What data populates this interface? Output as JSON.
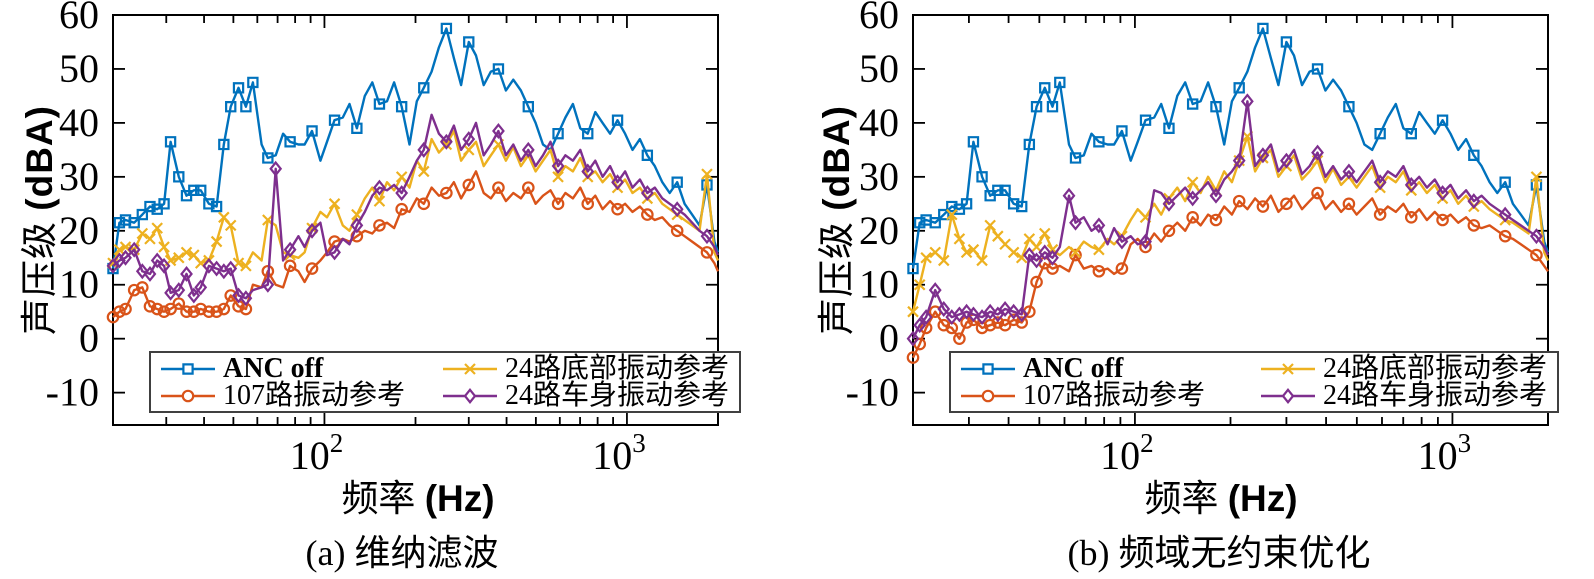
{
  "figure": {
    "background": "#ffffff",
    "axis_color": "#000000"
  },
  "chart_data": [
    {
      "id": "a",
      "type": "line",
      "title": "(a) 维纳滤波",
      "xlabel": "频率 (Hz)",
      "xlabel_cjk": "频率 ",
      "xlabel_latin": "(Hz)",
      "ylabel": "声压级 (dBA)",
      "ylabel_cjk": "声压级 ",
      "ylabel_latin": "(dBA)",
      "xscale": "log",
      "xlim": [
        20,
        2000
      ],
      "ylim": [
        -16,
        60
      ],
      "yticks": [
        60,
        50,
        40,
        30,
        20,
        10,
        0,
        -10
      ],
      "xticks_major": [
        100,
        1000
      ],
      "xtick_major_labels": [
        {
          "base": "10",
          "exp": "2"
        },
        {
          "base": "10",
          "exp": "3"
        }
      ],
      "xticks_minor": [
        30,
        40,
        50,
        60,
        70,
        80,
        90,
        200,
        300,
        400,
        500,
        600,
        700,
        800,
        900,
        2000
      ],
      "grid": false,
      "legend_position": "inside-bottom-left",
      "x": [
        20,
        21,
        22,
        23.5,
        25,
        26.5,
        28,
        29.5,
        31,
        33,
        35,
        37,
        39,
        41.5,
        44,
        46.5,
        49,
        52,
        55,
        58,
        62,
        65,
        69,
        73,
        77,
        82,
        86,
        91,
        97,
        102,
        108,
        115,
        121,
        128,
        136,
        144,
        152,
        161,
        170,
        180,
        191,
        202,
        213,
        226,
        239,
        253,
        268,
        283,
        300,
        317,
        336,
        355,
        376,
        398,
        421,
        446,
        472,
        499,
        528,
        559,
        592,
        626,
        663,
        701,
        742,
        786,
        831,
        880,
        931,
        986,
        1043,
        1104,
        1168,
        1236,
        1309,
        1385,
        1466,
        1551,
        1642,
        1737,
        1839,
        1946,
        2000
      ],
      "series": [
        {
          "name": "ANC off",
          "color": "#0072BD",
          "marker": "square",
          "bold": true,
          "values": [
            13,
            21.5,
            22,
            21.5,
            23,
            24.5,
            24,
            25,
            36.5,
            30,
            26.5,
            27.5,
            27.5,
            25,
            24.5,
            36,
            43,
            46.5,
            43,
            47.5,
            36,
            33.5,
            34,
            38,
            36.5,
            36,
            36,
            38.5,
            33,
            36.5,
            40.5,
            41,
            43.5,
            39,
            45,
            47.5,
            43.5,
            44,
            47.5,
            43,
            36,
            44,
            46.5,
            49.5,
            54,
            57.5,
            52,
            47,
            55,
            52.5,
            47,
            49.5,
            50,
            46,
            48,
            46,
            43,
            40,
            36,
            35,
            38,
            41,
            43.5,
            39,
            38,
            42,
            40,
            38,
            40.5,
            38,
            35,
            37,
            34,
            32,
            29,
            27,
            29,
            25,
            23,
            21,
            28.5,
            18,
            16
          ]
        },
        {
          "name": "107路振动参考",
          "color": "#D95319",
          "marker": "circle",
          "values": [
            4,
            5,
            5.5,
            9,
            9.5,
            6,
            5.5,
            5,
            5.5,
            6.5,
            5,
            5,
            5.5,
            5,
            5,
            5.5,
            8,
            6,
            5.5,
            10,
            9.5,
            12.5,
            10,
            9.5,
            13.5,
            12.5,
            10.5,
            13,
            14.5,
            16,
            18,
            18.5,
            18,
            19,
            20,
            19.5,
            21,
            21.5,
            20.5,
            24,
            23.5,
            26,
            25,
            28,
            26.5,
            27,
            29,
            26,
            28.5,
            31,
            27,
            26,
            28,
            25.5,
            27,
            26,
            28,
            25,
            26.5,
            27.5,
            25,
            27,
            26,
            28,
            25,
            26.5,
            24,
            25.5,
            24,
            25,
            23.5,
            24.5,
            23,
            22,
            22.5,
            21,
            20,
            19,
            18,
            17,
            16,
            14,
            12.5
          ]
        },
        {
          "name": "24路底部振动参考",
          "color": "#EDB120",
          "marker": "x",
          "values": [
            14,
            16.5,
            17,
            16.5,
            19.5,
            18.5,
            20.5,
            17,
            14.5,
            15,
            16,
            15.5,
            14,
            14.5,
            18,
            22.5,
            21,
            14,
            13.5,
            16,
            14.5,
            22,
            21,
            16,
            15.5,
            15,
            16,
            20.5,
            23.5,
            22.5,
            25,
            21,
            20,
            23,
            26,
            28,
            25.5,
            29,
            27.5,
            30,
            28,
            33,
            31,
            37,
            34.5,
            36,
            38.5,
            33,
            35,
            36.5,
            32,
            34,
            36,
            33,
            35.5,
            32,
            34,
            31,
            33,
            35,
            30,
            32,
            31,
            33.5,
            30,
            31,
            29,
            30.5,
            28,
            29.5,
            27,
            28,
            26,
            27,
            25,
            24,
            23,
            22,
            21,
            20,
            30.5,
            16,
            14.5
          ]
        },
        {
          "name": "24路车身振动参考",
          "color": "#7E2F8E",
          "marker": "diamond",
          "values": [
            13.5,
            14.5,
            15,
            16.5,
            12.5,
            12,
            14.5,
            13.5,
            8.5,
            9,
            12,
            8,
            9.5,
            13.5,
            13,
            12.5,
            13,
            8,
            7.5,
            9,
            9.5,
            10,
            31.5,
            14.5,
            16.5,
            19,
            17,
            20,
            21.5,
            15.5,
            16,
            18.5,
            17.5,
            21,
            23.5,
            26.5,
            28,
            27.5,
            28.5,
            27,
            30,
            33,
            35,
            41.5,
            38,
            36.5,
            39.5,
            35,
            37,
            40,
            34,
            36,
            38.5,
            34,
            36,
            33,
            35,
            32,
            34,
            36.5,
            32,
            34,
            33,
            35,
            31,
            33,
            30,
            32,
            29,
            31,
            28,
            29.5,
            27,
            28,
            26,
            25,
            24,
            23,
            21.5,
            20,
            19,
            17,
            15.5
          ]
        }
      ]
    },
    {
      "id": "b",
      "type": "line",
      "title": "(b) 频域无约束优化",
      "xlabel": "频率 (Hz)",
      "xlabel_cjk": "频率 ",
      "xlabel_latin": "(Hz)",
      "ylabel": "声压级 (dBA)",
      "ylabel_cjk": "声压级 ",
      "ylabel_latin": "(dBA)",
      "xscale": "log",
      "xlim": [
        20,
        2000
      ],
      "ylim": [
        -16,
        60
      ],
      "yticks": [
        60,
        50,
        40,
        30,
        20,
        10,
        0,
        -10
      ],
      "xticks_major": [
        100,
        1000
      ],
      "xtick_major_labels": [
        {
          "base": "10",
          "exp": "2"
        },
        {
          "base": "10",
          "exp": "3"
        }
      ],
      "xticks_minor": [
        30,
        40,
        50,
        60,
        70,
        80,
        90,
        200,
        300,
        400,
        500,
        600,
        700,
        800,
        900,
        2000
      ],
      "grid": false,
      "legend_position": "inside-bottom-left",
      "x": [
        20,
        21,
        22,
        23.5,
        25,
        26.5,
        28,
        29.5,
        31,
        33,
        35,
        37,
        39,
        41.5,
        44,
        46.5,
        49,
        52,
        55,
        58,
        62,
        65,
        69,
        73,
        77,
        82,
        86,
        91,
        97,
        102,
        108,
        115,
        121,
        128,
        136,
        144,
        152,
        161,
        170,
        180,
        191,
        202,
        213,
        226,
        239,
        253,
        268,
        283,
        300,
        317,
        336,
        355,
        376,
        398,
        421,
        446,
        472,
        499,
        528,
        559,
        592,
        626,
        663,
        701,
        742,
        786,
        831,
        880,
        931,
        986,
        1043,
        1104,
        1168,
        1236,
        1309,
        1385,
        1466,
        1551,
        1642,
        1737,
        1839,
        1946,
        2000
      ],
      "series": [
        {
          "name": "ANC off",
          "color": "#0072BD",
          "marker": "square",
          "bold": true,
          "values": [
            13,
            21.5,
            22,
            21.5,
            23,
            24.5,
            24,
            25,
            36.5,
            30,
            26.5,
            27.5,
            27.5,
            25,
            24.5,
            36,
            43,
            46.5,
            43,
            47.5,
            36,
            33.5,
            34,
            38,
            36.5,
            36,
            36,
            38.5,
            33,
            36.5,
            40.5,
            41,
            43.5,
            39,
            45,
            47.5,
            43.5,
            44,
            47.5,
            43,
            36,
            44,
            46.5,
            49.5,
            54,
            57.5,
            52,
            47,
            55,
            52.5,
            47,
            49.5,
            50,
            46,
            48,
            46,
            43,
            40,
            36,
            35,
            38,
            41,
            43.5,
            39,
            38,
            42,
            40,
            38,
            40.5,
            38,
            35,
            37,
            34,
            32,
            29,
            27,
            29,
            25,
            23,
            21,
            28.5,
            18,
            16
          ]
        },
        {
          "name": "107路振动参考",
          "color": "#D95319",
          "marker": "circle",
          "values": [
            -3.5,
            -1,
            2,
            5,
            2.5,
            2,
            0,
            3,
            3.5,
            2,
            2.5,
            3,
            2.5,
            3.5,
            3,
            5,
            10.5,
            14,
            13,
            13.5,
            12.5,
            15.5,
            13,
            13.5,
            12.5,
            13,
            12,
            13,
            17.5,
            18.5,
            17,
            19.5,
            18,
            20,
            21.5,
            20,
            22.5,
            21,
            23,
            22,
            24.5,
            23,
            25.5,
            24,
            26,
            24.5,
            26.5,
            23.5,
            25,
            26.5,
            24,
            25.5,
            27,
            24,
            25.5,
            23.5,
            25,
            23,
            24.5,
            26,
            23,
            24.5,
            23.5,
            25,
            22.5,
            24,
            22,
            23.5,
            22,
            23,
            21.5,
            22.5,
            21,
            20.5,
            21,
            20,
            19,
            18.5,
            17.5,
            16.5,
            15.5,
            13.5,
            12.5
          ]
        },
        {
          "name": "24路底部振动参考",
          "color": "#EDB120",
          "marker": "x",
          "values": [
            5,
            10,
            15,
            16,
            14.5,
            23,
            18.5,
            16,
            16.5,
            14.5,
            21,
            19,
            17.5,
            16,
            15,
            18.5,
            17,
            19.5,
            16.5,
            15.5,
            17,
            16,
            18,
            17,
            16.5,
            18.5,
            17.5,
            19,
            22,
            24,
            22.5,
            25,
            23,
            26,
            28,
            25.5,
            29,
            27,
            30,
            27.5,
            31,
            29,
            33,
            37.5,
            31,
            33.5,
            35,
            30,
            32,
            34,
            29.5,
            31,
            33,
            29,
            31.5,
            28.5,
            30,
            28,
            30,
            32,
            28,
            30,
            29,
            31,
            27.5,
            29,
            27,
            28.5,
            26,
            27.5,
            25,
            26.5,
            24.5,
            25.5,
            24,
            23,
            22,
            21.5,
            20.5,
            19.5,
            30,
            16,
            14.5
          ]
        },
        {
          "name": "24路车身振动参考",
          "color": "#7E2F8E",
          "marker": "diamond",
          "values": [
            0,
            2.5,
            4,
            9,
            5.5,
            4,
            4.5,
            5,
            4.5,
            4,
            5,
            4.5,
            5.5,
            5,
            4.5,
            15.5,
            14.5,
            16,
            15,
            17,
            26.5,
            21.5,
            22.5,
            20,
            21,
            17.5,
            20.5,
            18,
            19,
            17.5,
            18,
            27.5,
            27,
            25,
            26.5,
            28,
            26,
            27.5,
            29,
            26.5,
            29.5,
            31,
            33,
            44,
            32,
            34,
            36,
            31,
            33,
            35,
            30.5,
            32,
            34.5,
            30,
            32,
            29.5,
            31,
            29,
            31,
            33,
            29,
            31,
            30,
            32,
            28.5,
            30,
            28,
            29.5,
            27,
            28.5,
            26,
            27.5,
            25.5,
            26.5,
            25,
            24,
            23,
            22,
            21,
            20,
            19,
            17,
            15.5
          ]
        }
      ]
    }
  ]
}
